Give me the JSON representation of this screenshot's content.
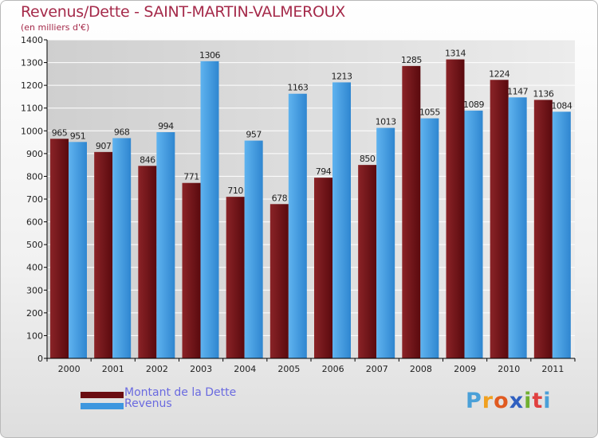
{
  "title": "Revenus/Dette - SAINT-MARTIN-VALMEROUX",
  "subtitle": "(en milliers d'€)",
  "logo_text": "Proxiti",
  "colors": {
    "title": "#a52a4a",
    "dette": "#6b0e12",
    "revenus": "#3d97df",
    "legend_text": "#6a6ae0",
    "grid": "#ffffff",
    "axis": "#000000"
  },
  "chart_data": {
    "type": "bar",
    "title": "Revenus/Dette - SAINT-MARTIN-VALMEROUX",
    "ylabel": "(en milliers d'€)",
    "ylim": [
      0,
      1400
    ],
    "yticks": [
      0,
      100,
      200,
      300,
      400,
      500,
      600,
      700,
      800,
      900,
      1000,
      1100,
      1200,
      1300,
      1400
    ],
    "categories": [
      "2000",
      "2001",
      "2002",
      "2003",
      "2004",
      "2005",
      "2006",
      "2007",
      "2008",
      "2009",
      "2010",
      "2011"
    ],
    "series": [
      {
        "name": "Montant de la Dette",
        "color": "#6b0e12",
        "values": [
          965,
          907,
          846,
          771,
          710,
          678,
          794,
          850,
          1285,
          1314,
          1224,
          1136
        ]
      },
      {
        "name": "Revenus",
        "color": "#3d97df",
        "values": [
          951,
          968,
          994,
          1306,
          957,
          1163,
          1213,
          1013,
          1055,
          1089,
          1147,
          1084
        ]
      }
    ],
    "grid": true,
    "legend": "bottom-left"
  }
}
